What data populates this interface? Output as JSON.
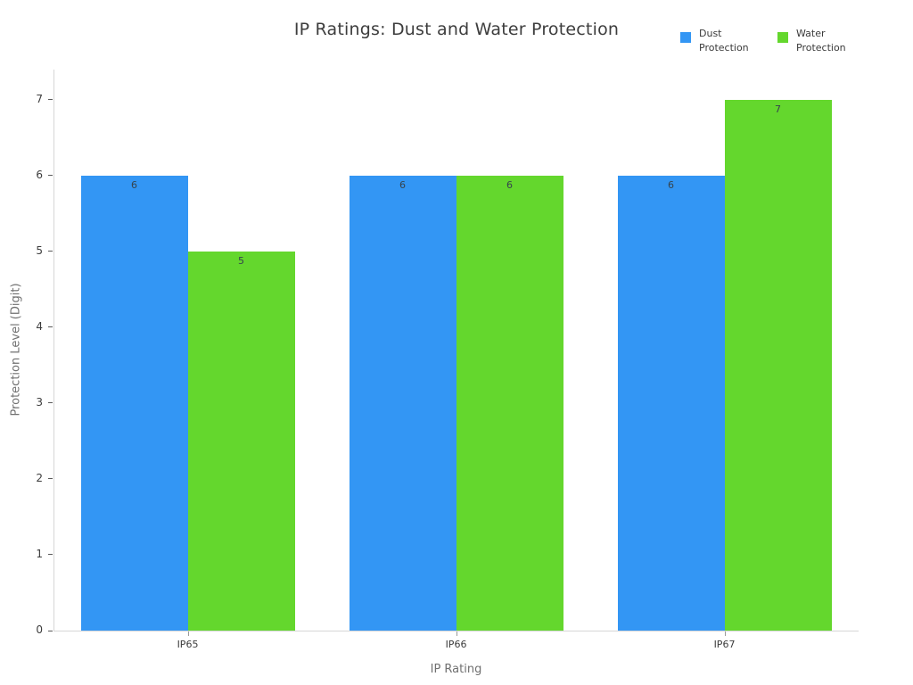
{
  "chart_data": {
    "type": "bar",
    "title": "IP Ratings: Dust and Water Protection",
    "xlabel": "IP Rating",
    "ylabel": "Protection Level (Digit)",
    "categories": [
      "IP65",
      "IP66",
      "IP67"
    ],
    "series": [
      {
        "name": "Dust Protection",
        "color": "#3396f4",
        "values": [
          6,
          6,
          6
        ]
      },
      {
        "name": "Water Protection",
        "color": "#64d72d",
        "values": [
          5,
          6,
          7
        ]
      }
    ],
    "ylim": [
      0,
      7
    ],
    "yticks": [
      0,
      1,
      2,
      3,
      4,
      5,
      6,
      7
    ],
    "grid": false,
    "legend_position": "top-right",
    "bar_value_labels_shown": true,
    "background_color": "#ffffff",
    "axis_line_color": "#d6d6d6"
  }
}
